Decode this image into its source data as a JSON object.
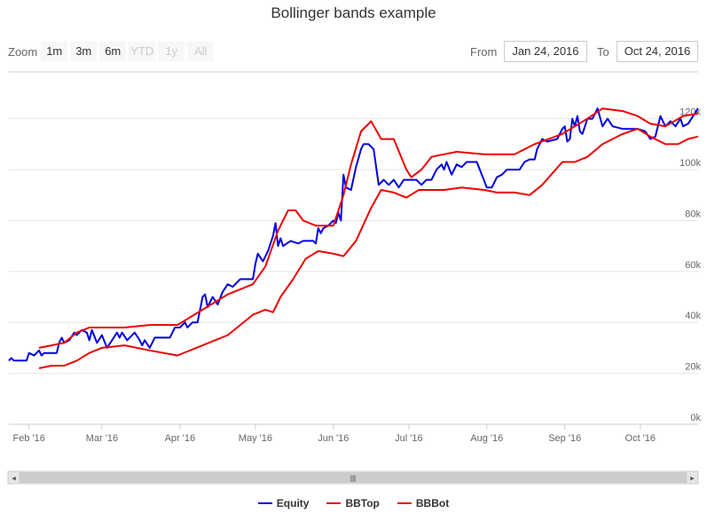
{
  "zoom": {
    "label": "Zoom",
    "buttons": [
      {
        "label": "1m",
        "enabled": true
      },
      {
        "label": "3m",
        "enabled": true
      },
      {
        "label": "6m",
        "enabled": true
      },
      {
        "label": "YTD",
        "enabled": false
      },
      {
        "label": "1y",
        "enabled": false
      },
      {
        "label": "All",
        "enabled": false
      }
    ]
  },
  "range": {
    "from_label": "From",
    "from_value": "Jan 24, 2016",
    "to_label": "To",
    "to_value": "Oct 24, 2016"
  },
  "navigator": {
    "handle_glyph": "|||",
    "left_arrow": "◂",
    "right_arrow": "▸"
  },
  "colors": {
    "equity": "#0000dd",
    "bbtop": "#ee0000",
    "bbbot": "#ee0000",
    "grid": "#e6e6e6",
    "axis_text": "#666666"
  },
  "chart_data": {
    "type": "line",
    "title": "Bollinger bands example",
    "xlabel": "",
    "ylabel": "",
    "ylim": [
      0,
      130000
    ],
    "grid": true,
    "legend_position": "bottom-center",
    "xlim": [
      "2016-01-24",
      "2016-10-24"
    ],
    "x_ticks": [
      "Feb '16",
      "Mar '16",
      "Apr '16",
      "May '16",
      "Jun '16",
      "Jul '16",
      "Aug '16",
      "Sep '16",
      "Oct '16"
    ],
    "y_ticks": [
      "0k",
      "20k",
      "40k",
      "60k",
      "80k",
      "100k",
      "120k"
    ],
    "series": [
      {
        "name": "Equity",
        "points": [
          [
            "2016-01-24",
            25000
          ],
          [
            "2016-01-25",
            26000
          ],
          [
            "2016-01-26",
            25000
          ],
          [
            "2016-01-31",
            25000
          ],
          [
            "2016-02-01",
            28000
          ],
          [
            "2016-02-03",
            27000
          ],
          [
            "2016-02-05",
            29000
          ],
          [
            "2016-02-06",
            27000
          ],
          [
            "2016-02-07",
            28000
          ],
          [
            "2016-02-12",
            28000
          ],
          [
            "2016-02-13",
            32000
          ],
          [
            "2016-02-14",
            34000
          ],
          [
            "2016-02-15",
            32000
          ],
          [
            "2016-02-17",
            33000
          ],
          [
            "2016-02-19",
            36000
          ],
          [
            "2016-02-20",
            35000
          ],
          [
            "2016-02-22",
            37000
          ],
          [
            "2016-02-24",
            36000
          ],
          [
            "2016-02-25",
            33000
          ],
          [
            "2016-02-26",
            37000
          ],
          [
            "2016-02-28",
            32000
          ],
          [
            "2016-03-01",
            35000
          ],
          [
            "2016-03-03",
            30000
          ],
          [
            "2016-03-05",
            33000
          ],
          [
            "2016-03-07",
            36000
          ],
          [
            "2016-03-08",
            34000
          ],
          [
            "2016-03-09",
            36000
          ],
          [
            "2016-03-11",
            33000
          ],
          [
            "2016-03-14",
            36000
          ],
          [
            "2016-03-16",
            33000
          ],
          [
            "2016-03-17",
            31000
          ],
          [
            "2016-03-18",
            33000
          ],
          [
            "2016-03-20",
            30000
          ],
          [
            "2016-03-22",
            34000
          ],
          [
            "2016-03-24",
            34000
          ],
          [
            "2016-03-26",
            34000
          ],
          [
            "2016-03-28",
            34000
          ],
          [
            "2016-03-30",
            38000
          ],
          [
            "2016-04-01",
            38000
          ],
          [
            "2016-04-03",
            40000
          ],
          [
            "2016-04-04",
            38000
          ],
          [
            "2016-04-06",
            40000
          ],
          [
            "2016-04-08",
            40000
          ],
          [
            "2016-04-10",
            50000
          ],
          [
            "2016-04-11",
            51000
          ],
          [
            "2016-04-12",
            46000
          ],
          [
            "2016-04-14",
            50000
          ],
          [
            "2016-04-16",
            47000
          ],
          [
            "2016-04-18",
            52000
          ],
          [
            "2016-04-20",
            55000
          ],
          [
            "2016-04-22",
            54000
          ],
          [
            "2016-04-25",
            57000
          ],
          [
            "2016-04-30",
            57000
          ],
          [
            "2016-05-01",
            63000
          ],
          [
            "2016-05-02",
            67000
          ],
          [
            "2016-05-04",
            64000
          ],
          [
            "2016-05-06",
            68000
          ],
          [
            "2016-05-08",
            74000
          ],
          [
            "2016-05-09",
            79000
          ],
          [
            "2016-05-10",
            70000
          ],
          [
            "2016-05-11",
            73000
          ],
          [
            "2016-05-12",
            70000
          ],
          [
            "2016-05-15",
            72000
          ],
          [
            "2016-05-18",
            71000
          ],
          [
            "2016-05-20",
            72000
          ],
          [
            "2016-05-24",
            72000
          ],
          [
            "2016-05-25",
            71000
          ],
          [
            "2016-05-26",
            77000
          ],
          [
            "2016-05-27",
            75000
          ],
          [
            "2016-05-28",
            77000
          ],
          [
            "2016-05-30",
            78000
          ],
          [
            "2016-06-01",
            80000
          ],
          [
            "2016-06-02",
            79000
          ],
          [
            "2016-06-03",
            83000
          ],
          [
            "2016-06-04",
            80000
          ],
          [
            "2016-06-05",
            98000
          ],
          [
            "2016-06-06",
            93000
          ],
          [
            "2016-06-08",
            92000
          ],
          [
            "2016-06-10",
            101000
          ],
          [
            "2016-06-12",
            108000
          ],
          [
            "2016-06-13",
            110000
          ],
          [
            "2016-06-15",
            110000
          ],
          [
            "2016-06-17",
            108000
          ],
          [
            "2016-06-19",
            94000
          ],
          [
            "2016-06-21",
            96000
          ],
          [
            "2016-06-23",
            94000
          ],
          [
            "2016-06-25",
            96000
          ],
          [
            "2016-06-27",
            93000
          ],
          [
            "2016-06-29",
            96000
          ],
          [
            "2016-07-04",
            96000
          ],
          [
            "2016-07-06",
            94000
          ],
          [
            "2016-07-08",
            96000
          ],
          [
            "2016-07-10",
            96000
          ],
          [
            "2016-07-12",
            100000
          ],
          [
            "2016-07-14",
            102000
          ],
          [
            "2016-07-15",
            100000
          ],
          [
            "2016-07-16",
            103000
          ],
          [
            "2016-07-18",
            98000
          ],
          [
            "2016-07-20",
            102000
          ],
          [
            "2016-07-22",
            101000
          ],
          [
            "2016-07-24",
            103000
          ],
          [
            "2016-07-28",
            103000
          ],
          [
            "2016-07-30",
            98000
          ],
          [
            "2016-08-01",
            93000
          ],
          [
            "2016-08-03",
            93000
          ],
          [
            "2016-08-05",
            97000
          ],
          [
            "2016-08-07",
            98000
          ],
          [
            "2016-08-09",
            100000
          ],
          [
            "2016-08-14",
            100000
          ],
          [
            "2016-08-16",
            103000
          ],
          [
            "2016-08-18",
            104000
          ],
          [
            "2016-08-20",
            104000
          ],
          [
            "2016-08-21",
            108000
          ],
          [
            "2016-08-23",
            112000
          ],
          [
            "2016-08-25",
            111000
          ],
          [
            "2016-08-29",
            112000
          ],
          [
            "2016-08-31",
            116000
          ],
          [
            "2016-09-01",
            117000
          ],
          [
            "2016-09-02",
            111000
          ],
          [
            "2016-09-03",
            112000
          ],
          [
            "2016-09-04",
            120000
          ],
          [
            "2016-09-05",
            117000
          ],
          [
            "2016-09-06",
            121000
          ],
          [
            "2016-09-07",
            115000
          ],
          [
            "2016-09-08",
            114000
          ],
          [
            "2016-09-10",
            120000
          ],
          [
            "2016-09-12",
            120000
          ],
          [
            "2016-09-14",
            124000
          ],
          [
            "2016-09-16",
            117000
          ],
          [
            "2016-09-18",
            120000
          ],
          [
            "2016-09-20",
            117000
          ],
          [
            "2016-09-24",
            116000
          ],
          [
            "2016-09-27",
            116000
          ],
          [
            "2016-09-30",
            116000
          ],
          [
            "2016-10-03",
            115000
          ],
          [
            "2016-10-05",
            112000
          ],
          [
            "2016-10-07",
            113000
          ],
          [
            "2016-10-09",
            121000
          ],
          [
            "2016-10-11",
            117000
          ],
          [
            "2016-10-13",
            119000
          ],
          [
            "2016-10-15",
            117000
          ],
          [
            "2016-10-17",
            120000
          ],
          [
            "2016-10-18",
            117000
          ],
          [
            "2016-10-20",
            118000
          ],
          [
            "2016-10-22",
            121000
          ],
          [
            "2016-10-24",
            124000
          ]
        ]
      },
      {
        "name": "BBTop",
        "points": [
          [
            "2016-02-05",
            30000
          ],
          [
            "2016-02-10",
            31000
          ],
          [
            "2016-02-15",
            32000
          ],
          [
            "2016-02-20",
            36000
          ],
          [
            "2016-02-25",
            38000
          ],
          [
            "2016-03-01",
            38000
          ],
          [
            "2016-03-10",
            38000
          ],
          [
            "2016-03-20",
            39000
          ],
          [
            "2016-03-31",
            39000
          ],
          [
            "2016-04-10",
            45000
          ],
          [
            "2016-04-20",
            51000
          ],
          [
            "2016-04-30",
            55000
          ],
          [
            "2016-05-05",
            62000
          ],
          [
            "2016-05-10",
            76000
          ],
          [
            "2016-05-14",
            84000
          ],
          [
            "2016-05-17",
            84000
          ],
          [
            "2016-05-20",
            80000
          ],
          [
            "2016-05-25",
            78000
          ],
          [
            "2016-06-01",
            78000
          ],
          [
            "2016-06-05",
            90000
          ],
          [
            "2016-06-08",
            102000
          ],
          [
            "2016-06-12",
            115000
          ],
          [
            "2016-06-16",
            119000
          ],
          [
            "2016-06-20",
            112000
          ],
          [
            "2016-06-25",
            112000
          ],
          [
            "2016-06-30",
            100000
          ],
          [
            "2016-07-02",
            97000
          ],
          [
            "2016-07-06",
            100000
          ],
          [
            "2016-07-10",
            105000
          ],
          [
            "2016-07-20",
            107000
          ],
          [
            "2016-07-31",
            106000
          ],
          [
            "2016-08-05",
            106000
          ],
          [
            "2016-08-12",
            106000
          ],
          [
            "2016-08-20",
            110000
          ],
          [
            "2016-08-31",
            114000
          ],
          [
            "2016-09-10",
            120000
          ],
          [
            "2016-09-16",
            124000
          ],
          [
            "2016-09-24",
            123000
          ],
          [
            "2016-09-30",
            121000
          ],
          [
            "2016-10-05",
            118000
          ],
          [
            "2016-10-11",
            117000
          ],
          [
            "2016-10-18",
            121000
          ],
          [
            "2016-10-24",
            122000
          ]
        ]
      },
      {
        "name": "BBBot",
        "points": [
          [
            "2016-02-05",
            22000
          ],
          [
            "2016-02-10",
            23000
          ],
          [
            "2016-02-15",
            23000
          ],
          [
            "2016-02-20",
            25000
          ],
          [
            "2016-02-25",
            28000
          ],
          [
            "2016-03-01",
            30000
          ],
          [
            "2016-03-10",
            31000
          ],
          [
            "2016-03-20",
            29000
          ],
          [
            "2016-03-31",
            27000
          ],
          [
            "2016-04-10",
            31000
          ],
          [
            "2016-04-20",
            35000
          ],
          [
            "2016-04-30",
            43000
          ],
          [
            "2016-05-05",
            45000
          ],
          [
            "2016-05-08",
            44000
          ],
          [
            "2016-05-11",
            50000
          ],
          [
            "2016-05-16",
            57000
          ],
          [
            "2016-05-21",
            65000
          ],
          [
            "2016-05-26",
            68000
          ],
          [
            "2016-06-01",
            67000
          ],
          [
            "2016-06-05",
            66000
          ],
          [
            "2016-06-10",
            72000
          ],
          [
            "2016-06-16",
            85000
          ],
          [
            "2016-06-20",
            92000
          ],
          [
            "2016-06-25",
            91000
          ],
          [
            "2016-06-30",
            89000
          ],
          [
            "2016-07-05",
            92000
          ],
          [
            "2016-07-15",
            92000
          ],
          [
            "2016-07-22",
            93000
          ],
          [
            "2016-07-31",
            92000
          ],
          [
            "2016-08-05",
            91000
          ],
          [
            "2016-08-12",
            91000
          ],
          [
            "2016-08-18",
            90000
          ],
          [
            "2016-08-23",
            94000
          ],
          [
            "2016-08-31",
            103000
          ],
          [
            "2016-09-05",
            103000
          ],
          [
            "2016-09-10",
            105000
          ],
          [
            "2016-09-16",
            110000
          ],
          [
            "2016-09-24",
            114000
          ],
          [
            "2016-09-30",
            116000
          ],
          [
            "2016-10-05",
            113000
          ],
          [
            "2016-10-11",
            110000
          ],
          [
            "2016-10-16",
            110000
          ],
          [
            "2016-10-20",
            112000
          ],
          [
            "2016-10-24",
            113000
          ]
        ]
      }
    ]
  }
}
